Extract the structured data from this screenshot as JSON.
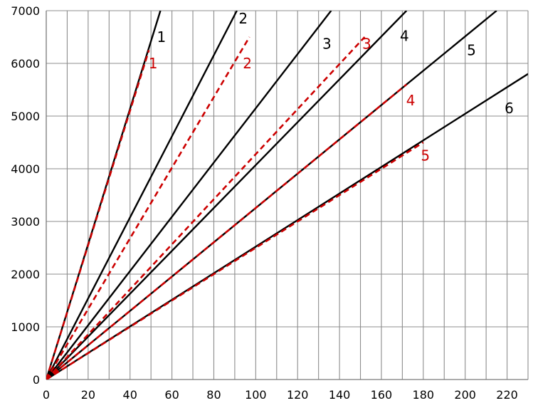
{
  "chart_data": {
    "type": "line",
    "title": "",
    "xlabel": "",
    "ylabel": "",
    "xlim": [
      0,
      230
    ],
    "ylim": [
      0,
      7000
    ],
    "x_ticks": [
      0,
      20,
      40,
      60,
      80,
      100,
      120,
      140,
      160,
      180,
      200,
      220
    ],
    "x_tick_labels": [
      "0",
      "20",
      "40",
      "60",
      "80",
      "100",
      "120",
      "140",
      "160",
      "180",
      "200",
      "220"
    ],
    "y_ticks": [
      0,
      1000,
      2000,
      3000,
      4000,
      5000,
      6000,
      7000
    ],
    "y_tick_labels": [
      "0",
      "1000",
      "2000",
      "3000",
      "4000",
      "5000",
      "6000",
      "7000"
    ],
    "x_minor_gridline_step": 10,
    "grid": true,
    "legend": "none",
    "series": [
      {
        "label": "1",
        "style": "solid",
        "color": "#000000",
        "x": [
          0,
          54.5
        ],
        "y": [
          0,
          7000
        ]
      },
      {
        "label": "2",
        "style": "solid",
        "color": "#000000",
        "x": [
          0,
          91
        ],
        "y": [
          0,
          7000
        ]
      },
      {
        "label": "3",
        "style": "solid",
        "color": "#000000",
        "x": [
          0,
          136
        ],
        "y": [
          0,
          7000
        ]
      },
      {
        "label": "4",
        "style": "solid",
        "color": "#000000",
        "x": [
          0,
          172
        ],
        "y": [
          0,
          7000
        ]
      },
      {
        "label": "5",
        "style": "solid",
        "color": "#000000",
        "x": [
          0,
          215
        ],
        "y": [
          0,
          7000
        ]
      },
      {
        "label": "6",
        "style": "solid",
        "color": "#000000",
        "x": [
          0,
          230
        ],
        "y": [
          0,
          5800
        ]
      },
      {
        "label": "1",
        "style": "dashed",
        "color": "#cc0000",
        "x": [
          0,
          49
        ],
        "y": [
          0,
          6250
        ]
      },
      {
        "label": "2",
        "style": "dashed",
        "color": "#cc0000",
        "x": [
          0,
          97
        ],
        "y": [
          0,
          6500
        ]
      },
      {
        "label": "3",
        "style": "dashed",
        "color": "#cc0000",
        "x": [
          0,
          152
        ],
        "y": [
          0,
          6500
        ]
      },
      {
        "label": "4",
        "style": "dashed",
        "color": "#cc0000",
        "x": [
          0,
          172
        ],
        "y": [
          0,
          5600
        ]
      },
      {
        "label": "5",
        "style": "dashed",
        "color": "#cc0000",
        "x": [
          0,
          180
        ],
        "y": [
          0,
          4500
        ]
      }
    ],
    "annotations": [
      {
        "text": "1",
        "x": 55,
        "y": 6500,
        "color": "#000000"
      },
      {
        "text": "2",
        "x": 94,
        "y": 6850,
        "color": "#000000"
      },
      {
        "text": "3",
        "x": 134,
        "y": 6370,
        "color": "#000000"
      },
      {
        "text": "4",
        "x": 171,
        "y": 6520,
        "color": "#000000"
      },
      {
        "text": "5",
        "x": 203,
        "y": 6250,
        "color": "#000000"
      },
      {
        "text": "6",
        "x": 221,
        "y": 5150,
        "color": "#000000"
      },
      {
        "text": "1",
        "x": 51,
        "y": 6000,
        "color": "#cc0000"
      },
      {
        "text": "2",
        "x": 96,
        "y": 6000,
        "color": "#cc0000"
      },
      {
        "text": "3",
        "x": 153,
        "y": 6370,
        "color": "#cc0000"
      },
      {
        "text": "4",
        "x": 174,
        "y": 5300,
        "color": "#cc0000"
      },
      {
        "text": "5",
        "x": 181,
        "y": 4250,
        "color": "#cc0000"
      }
    ]
  }
}
